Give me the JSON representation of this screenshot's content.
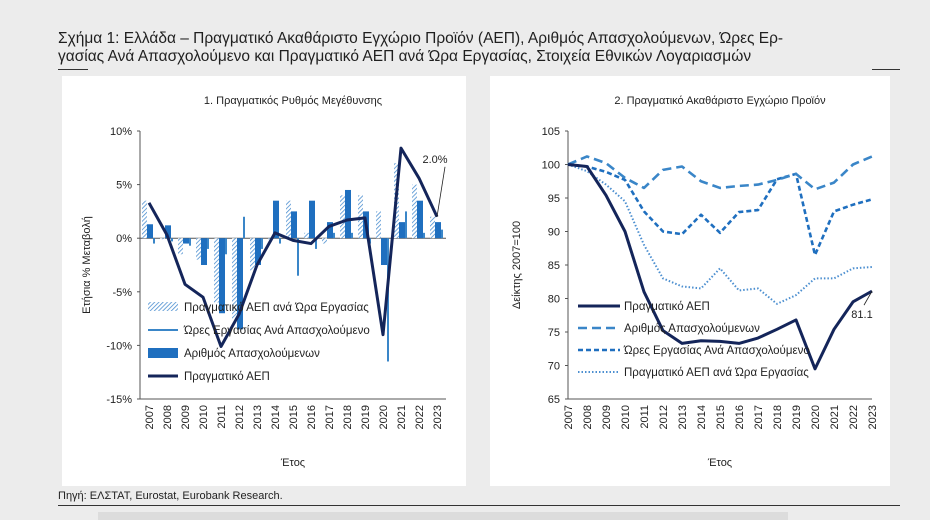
{
  "figure": {
    "title": "Σχήμα 1: Ελλάδα – Πραγματικό Ακαθάριστο Εγχώριο Προϊόν (ΑΕΠ), Αριθμός Απασχολούμενων, Ώρες Εργασίας Ανά Απασχολούμενο και Πραγματικό ΑΕΠ ανά Ώρα Εργασίας, Στοιχεία Εθνικών Λογαριασμών",
    "title_line1": "Σχήμα 1: Ελλάδα – Πραγματικό Ακαθάριστο Εγχώριο Προϊόν (ΑΕΠ), Αριθμός Απασχολούμενων, Ώρες Ερ-",
    "title_line2": "γασίας Ανά Απασχολούμενο και Πραγματικό ΑΕΠ ανά Ώρα Εργασίας, Στοιχεία Εθνικών Λογαριασμών",
    "source": "Πηγή: ΕΛΣΤΑΤ, Eurostat, Eurobank Research."
  },
  "colors": {
    "navy": "#14255a",
    "blue": "#1f6fbf",
    "mid_blue": "#3a86c8",
    "light_blue": "#4c8fd0"
  },
  "chart_data": [
    {
      "type": "bar",
      "title": "1. Πραγματικός Ρυθμός Μεγέθυνσης",
      "xlabel": "Έτος",
      "ylabel": "Ετήσια % Μεταβολή",
      "categories": [
        "2007",
        "2008",
        "2009",
        "2010",
        "2011",
        "2012",
        "2013",
        "2014",
        "2015",
        "2016",
        "2017",
        "2018",
        "2019",
        "2020",
        "2021",
        "2022",
        "2023"
      ],
      "ylim": [
        -15,
        10
      ],
      "yticks": [
        -15,
        -10,
        -5,
        0,
        5,
        10
      ],
      "ytick_labels": [
        "-15%",
        "-10%",
        "-5%",
        "0%",
        "5%",
        "10%"
      ],
      "legend_position": "bottom-left",
      "series": [
        {
          "name": "Πραγματικό ΑΕΠ ανά Ώρα Εργασίας",
          "style": "hatched-bar",
          "values": [
            3.5,
            0.0,
            -1.5,
            -2.0,
            -6.0,
            -7.5,
            -3.0,
            0.0,
            3.5,
            0.5,
            -0.5,
            4.0,
            4.0,
            2.5,
            7.0,
            5.0,
            2.0
          ]
        },
        {
          "name": "Ώρες Εργασίας Ανά Απασχολούμενο",
          "style": "thin-bar",
          "values": [
            -0.5,
            -0.3,
            -0.7,
            -1.0,
            -1.5,
            2.0,
            -1.0,
            -0.5,
            -3.5,
            -1.0,
            0.5,
            0.5,
            -0.5,
            -11.5,
            2.5,
            0.5,
            0.8
          ]
        },
        {
          "name": "Αριθμός Απασχολούμενων",
          "style": "bar",
          "values": [
            1.3,
            1.2,
            -0.5,
            -2.5,
            -7.0,
            -8.5,
            -2.5,
            3.5,
            2.5,
            3.5,
            1.5,
            4.5,
            2.5,
            -2.5,
            1.5,
            3.5,
            1.5
          ]
        },
        {
          "name": "Πραγματικό ΑΕΠ",
          "style": "line",
          "values": [
            3.3,
            0.3,
            -4.3,
            -5.5,
            -10.1,
            -7.1,
            -2.5,
            0.5,
            -0.2,
            -0.5,
            1.1,
            1.7,
            1.9,
            -9.0,
            8.4,
            5.6,
            2.0
          ]
        }
      ],
      "annotations": [
        {
          "text": "2.0%",
          "category": "2023",
          "value": 2.0
        }
      ]
    },
    {
      "type": "line",
      "title": "2. Πραγματικό Ακαθάριστο Εγχώριο Προϊόν",
      "xlabel": "Έτος",
      "ylabel": "Δείκτης 2007=100",
      "categories": [
        "2007",
        "2008",
        "2009",
        "2010",
        "2011",
        "2012",
        "2013",
        "2014",
        "2015",
        "2016",
        "2017",
        "2018",
        "2019",
        "2020",
        "2021",
        "2022",
        "2023"
      ],
      "ylim": [
        65,
        105
      ],
      "yticks": [
        65,
        70,
        75,
        80,
        85,
        90,
        95,
        100,
        105
      ],
      "legend_position": "bottom-left",
      "series": [
        {
          "name": "Πραγματικό ΑΕΠ",
          "style": "solid",
          "values": [
            100,
            99.7,
            95.4,
            90.0,
            81.0,
            75.2,
            73.3,
            73.7,
            73.6,
            73.3,
            74.1,
            75.4,
            76.8,
            69.5,
            75.4,
            79.5,
            81.1
          ]
        },
        {
          "name": "Αριθμός Απασχολούμενων",
          "style": "dashed-wide",
          "values": [
            100,
            101.2,
            100.2,
            98.0,
            96.5,
            99.2,
            99.7,
            97.5,
            96.5,
            96.8,
            97.0,
            97.7,
            98.6,
            96.3,
            97.3,
            100.0,
            101.2
          ]
        },
        {
          "name": "Ώρες Εργασίας Ανά Απασχολούμενο",
          "style": "dashed",
          "values": [
            100,
            99.7,
            98.9,
            97.7,
            93.0,
            90.0,
            89.6,
            92.5,
            89.8,
            92.9,
            93.2,
            97.8,
            98.6,
            86.5,
            93.0,
            94.0,
            94.8
          ]
        },
        {
          "name": "Πραγματικό ΑΕΠ ανά Ώρα Εργασίας",
          "style": "dotted",
          "values": [
            100,
            99.0,
            97.0,
            94.5,
            88.0,
            83.0,
            81.8,
            81.5,
            84.5,
            81.2,
            81.5,
            79.2,
            80.5,
            83.0,
            83.0,
            84.5,
            84.7
          ]
        }
      ],
      "annotations": [
        {
          "text": "81.1",
          "category": "2023",
          "value": 81.1
        }
      ]
    }
  ]
}
